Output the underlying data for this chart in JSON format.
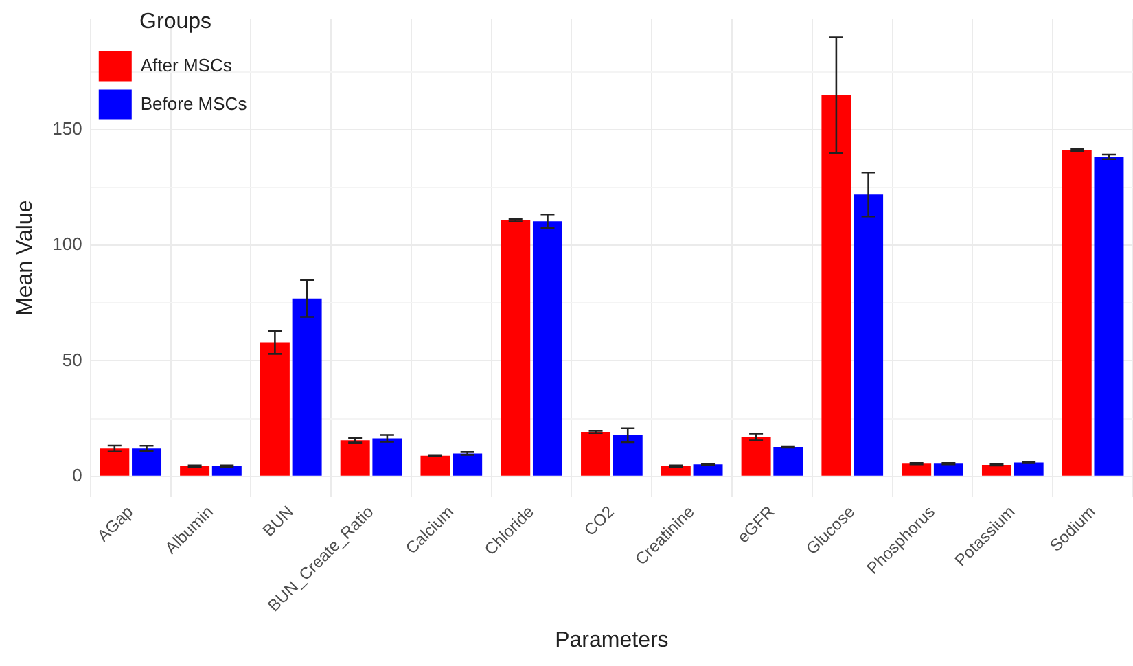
{
  "chart_data": {
    "type": "bar",
    "xlabel": "Parameters",
    "ylabel": "Mean Value",
    "legend_title": "Groups",
    "categories": [
      "AGap",
      "Albumin",
      "BUN",
      "BUN_Create_Ratio",
      "Calcium",
      "Chloride",
      "CO2",
      "Creatinine",
      "eGFR",
      "Glucose",
      "Phosphorus",
      "Potassium",
      "Sodium"
    ],
    "series": [
      {
        "name": "After MSCs",
        "color": "#ff0000",
        "values": [
          12,
          4.4,
          58,
          15.6,
          8.9,
          110.8,
          19.2,
          4.4,
          17,
          165,
          5.5,
          5,
          141.3
        ],
        "errors": [
          1.3,
          0.3,
          5,
          1,
          0.3,
          0.5,
          0.5,
          0.3,
          1.5,
          25,
          0.3,
          0.3,
          0.5
        ]
      },
      {
        "name": "Before MSCs",
        "color": "#0000ff",
        "values": [
          12,
          4.4,
          77,
          16.4,
          9.9,
          110.4,
          17.8,
          5.2,
          12.7,
          122,
          5.5,
          6,
          138.3
        ],
        "errors": [
          1.2,
          0.3,
          8,
          1.5,
          0.6,
          3,
          3,
          0.3,
          0.3,
          9.5,
          0.3,
          0.3,
          1
        ]
      }
    ],
    "ylim": [
      -9,
      198
    ],
    "yticks": [
      0,
      {
        "value": 25,
        "label": null
      },
      50,
      {
        "value": 75,
        "label": null
      },
      100,
      {
        "value": 125,
        "label": null
      },
      150,
      {
        "value": 175,
        "label": null
      }
    ],
    "grid": true,
    "legend": "top left"
  }
}
